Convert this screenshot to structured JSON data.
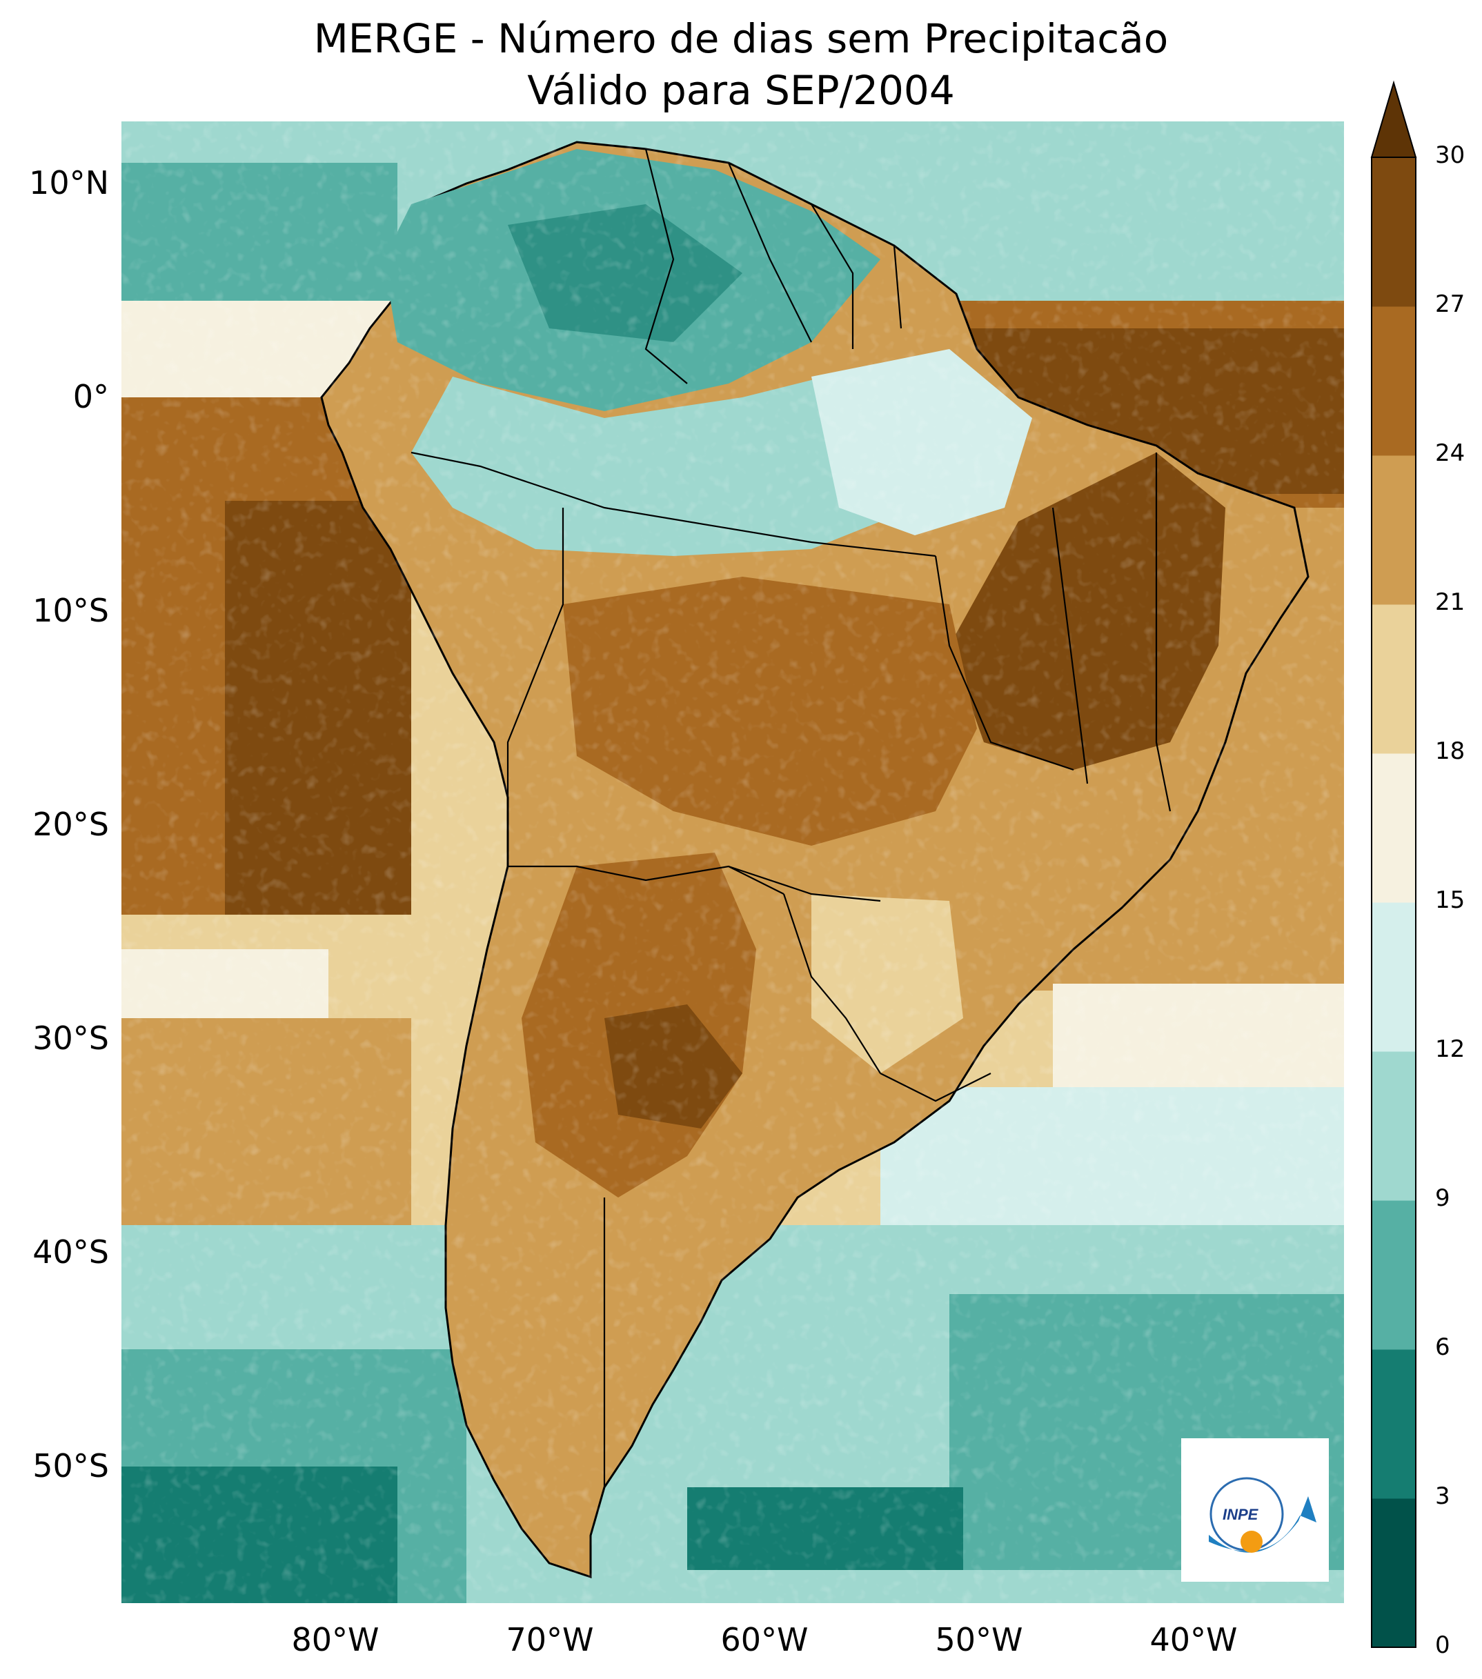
{
  "title": {
    "line1": "MERGE - Número de dias sem Precipitacão",
    "line2": "Válido para SEP/2004"
  },
  "axes": {
    "lat_ticks": [
      "10°N",
      "0°",
      "10°S",
      "20°S",
      "30°S",
      "40°S",
      "50°S"
    ],
    "lon_ticks": [
      "80°W",
      "70°W",
      "60°W",
      "50°W",
      "40°W"
    ],
    "lat_values": [
      10,
      0,
      -10,
      -20,
      -30,
      -40,
      -50
    ],
    "lon_values": [
      -80,
      -70,
      -60,
      -50,
      -40
    ],
    "lon_range": [
      -90,
      -33
    ],
    "lat_range": [
      -56,
      13
    ]
  },
  "colorbar": {
    "ticks": [
      "0",
      "3",
      "6",
      "9",
      "12",
      "15",
      "18",
      "21",
      "24",
      "27",
      "30"
    ],
    "colors": [
      "#01524a",
      "#157d71",
      "#56b0a4",
      "#9fd8cf",
      "#d5efec",
      "#f6f1e0",
      "#ead29a",
      "#cf9d52",
      "#a96a22",
      "#7e4a10",
      "#5e3406"
    ],
    "extend": "max"
  },
  "logo": {
    "text": "INPE"
  },
  "palette": {
    "ocean_green": "#56b0a4",
    "teal_dark": "#157d71",
    "land_brown": "#a96a22",
    "dark_brown": "#7e4a10"
  }
}
